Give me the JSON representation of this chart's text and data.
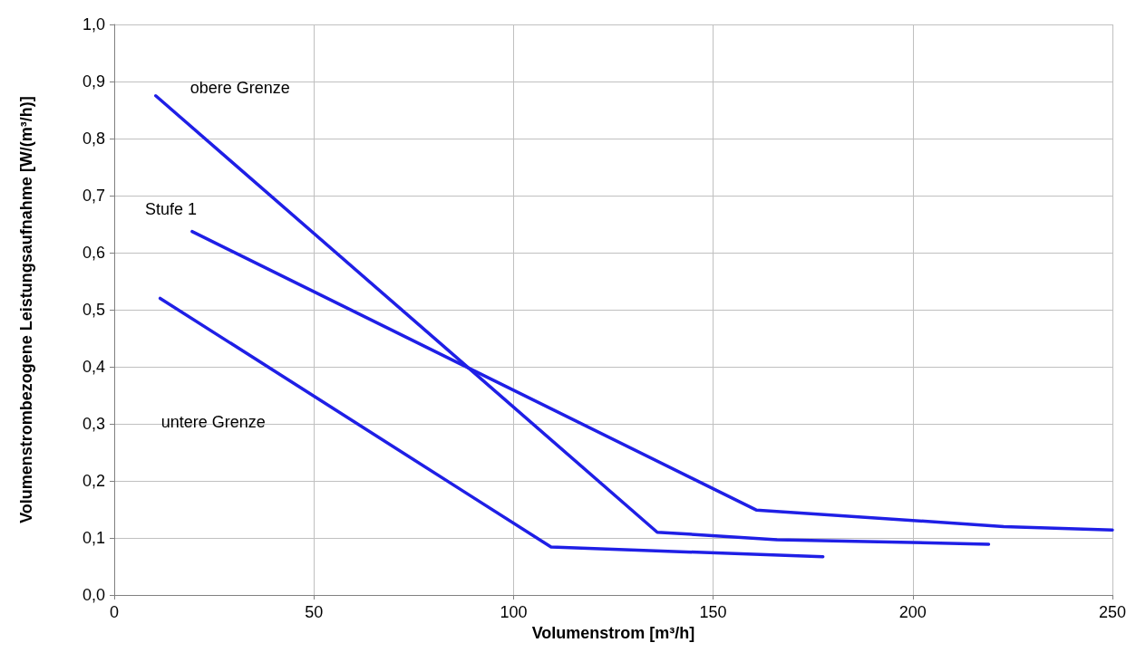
{
  "chart_data": {
    "type": "line",
    "xlabel": "Volumenstrom [m³/h]",
    "ylabel": "Volumenstrombezogene Leistungsaufnahme [W/(m³/h)]",
    "series": [
      {
        "name": "obere Grenze",
        "color": "#1f1fe6",
        "x": [
          10.4,
          136,
          166,
          219
        ],
        "values": [
          0.875,
          0.11,
          0.097,
          0.089
        ]
      },
      {
        "name": "Stufe 1",
        "color": "#1f1fe6",
        "x": [
          19.5,
          160.8,
          222.8,
          250
        ],
        "values": [
          0.637,
          0.149,
          0.12,
          0.114
        ]
      },
      {
        "name": "untere Grenze",
        "color": "#1f1fe6",
        "x": [
          11.5,
          109.4,
          177.5
        ],
        "values": [
          0.52,
          0.084,
          0.067
        ]
      }
    ],
    "xlim": [
      0,
      250
    ],
    "xticks": [
      0,
      50,
      100,
      150,
      200,
      250
    ],
    "ylim": [
      0,
      1
    ],
    "yticks": [
      {
        "value": 0,
        "label": "0,0"
      },
      {
        "value": 0.1,
        "label": "0,1"
      },
      {
        "value": 0.2,
        "label": "0,2"
      },
      {
        "value": 0.3,
        "label": "0,3"
      },
      {
        "value": 0.4,
        "label": "0,4"
      },
      {
        "value": 0.5,
        "label": "0,5"
      },
      {
        "value": 0.6,
        "label": "0,6"
      },
      {
        "value": 0.7,
        "label": "0,7"
      },
      {
        "value": 0.8,
        "label": "0,8"
      },
      {
        "value": 0.9,
        "label": "0,9"
      },
      {
        "value": 1,
        "label": "1,0"
      }
    ],
    "grid": true,
    "legend": false,
    "marker": "none",
    "line_style": "solid"
  }
}
